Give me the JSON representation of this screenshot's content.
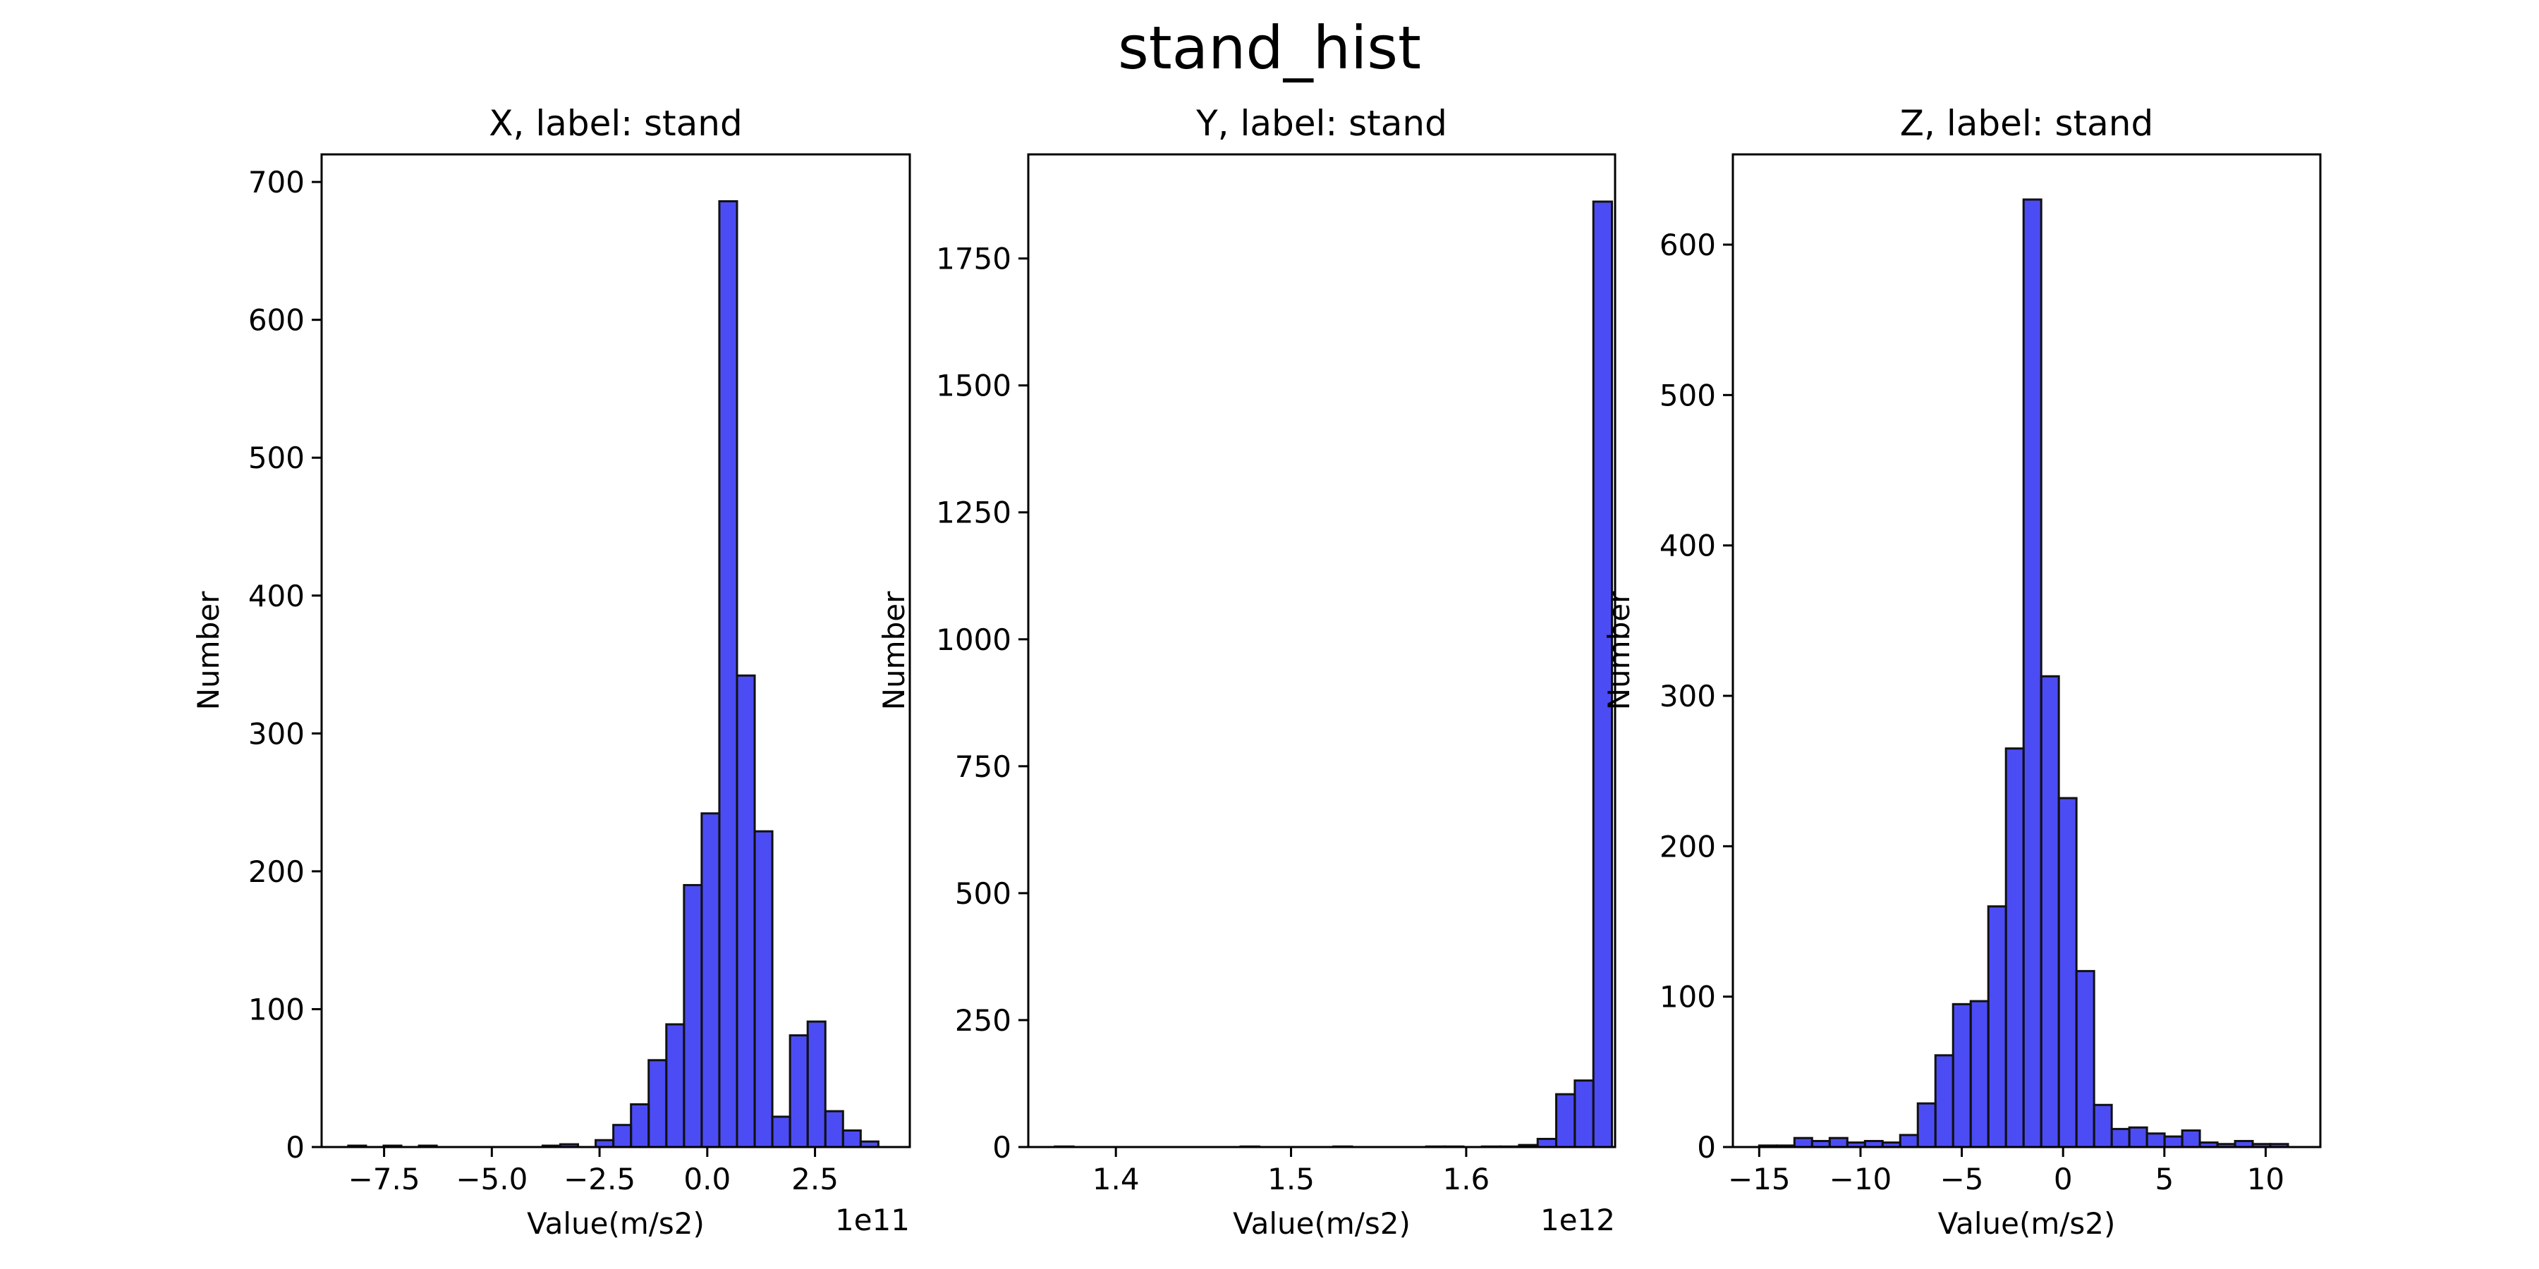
{
  "figure": {
    "title": "stand_hist"
  },
  "colors": {
    "bar_fill": "#0000f0",
    "bar_edge": "#111111"
  },
  "chart_data": [
    {
      "type": "bar",
      "title": "X, label: stand",
      "xlabel": "Value(m/s2)",
      "ylabel": "Number",
      "x_offset_text": "1e11",
      "xlim": [
        -8.95,
        4.7
      ],
      "ylim": [
        0,
        720
      ],
      "x_ticks": [
        -7.5,
        -5.0,
        -2.5,
        0.0,
        2.5
      ],
      "x_tick_labels": [
        "−7.5",
        "−5.0",
        "−2.5",
        "0.0",
        "2.5"
      ],
      "y_ticks": [
        0,
        100,
        200,
        300,
        400,
        500,
        600,
        700
      ],
      "y_tick_labels": [
        "0",
        "100",
        "200",
        "300",
        "400",
        "500",
        "600",
        "700"
      ],
      "bin_start": -8.33,
      "bin_width": 0.41,
      "values": [
        1,
        0,
        1,
        0,
        1,
        0,
        0,
        0,
        0,
        0,
        0,
        1,
        2,
        0,
        5,
        16,
        31,
        63,
        89,
        190,
        242,
        686,
        342,
        229,
        22,
        81,
        91,
        26,
        12,
        4
      ]
    },
    {
      "type": "bar",
      "title": "Y, label: stand",
      "xlabel": "Value(m/s2)",
      "ylabel": "Number",
      "x_offset_text": "1e12",
      "xlim": [
        1.35,
        1.685
      ],
      "ylim": [
        0,
        1955
      ],
      "x_ticks": [
        1.4,
        1.5,
        1.6
      ],
      "x_tick_labels": [
        "1.4",
        "1.5",
        "1.6"
      ],
      "y_ticks": [
        0,
        250,
        500,
        750,
        1000,
        1250,
        1500,
        1750
      ],
      "y_tick_labels": [
        "0",
        "250",
        "500",
        "750",
        "1000",
        "1250",
        "1500",
        "1750"
      ],
      "bin_start": 1.3652,
      "bin_width": 0.0106,
      "values": [
        1,
        0,
        0,
        0,
        0,
        0,
        0,
        0,
        0,
        0,
        1,
        0,
        0,
        0,
        0,
        1,
        0,
        0,
        0,
        0,
        1,
        1,
        0,
        1,
        1,
        4,
        16,
        104,
        131,
        1862
      ]
    },
    {
      "type": "bar",
      "title": "Z, label: stand",
      "xlabel": "Value(m/s2)",
      "ylabel": "Number",
      "x_offset_text": "",
      "xlim": [
        -16.3,
        12.7
      ],
      "ylim": [
        0,
        660
      ],
      "x_ticks": [
        -15,
        -10,
        -5,
        0,
        5,
        10
      ],
      "x_tick_labels": [
        "−15",
        "−10",
        "−5",
        "0",
        "5",
        "10"
      ],
      "y_ticks": [
        0,
        100,
        200,
        300,
        400,
        500,
        600
      ],
      "y_tick_labels": [
        "0",
        "100",
        "200",
        "300",
        "400",
        "500",
        "600"
      ],
      "bin_start": -15.0,
      "bin_width": 0.87,
      "values": [
        1,
        1,
        6,
        4,
        6,
        3,
        4,
        3,
        8,
        29,
        61,
        95,
        97,
        160,
        265,
        630,
        313,
        232,
        117,
        28,
        12,
        13,
        9,
        7,
        11,
        3,
        2,
        4,
        2,
        2
      ]
    }
  ]
}
